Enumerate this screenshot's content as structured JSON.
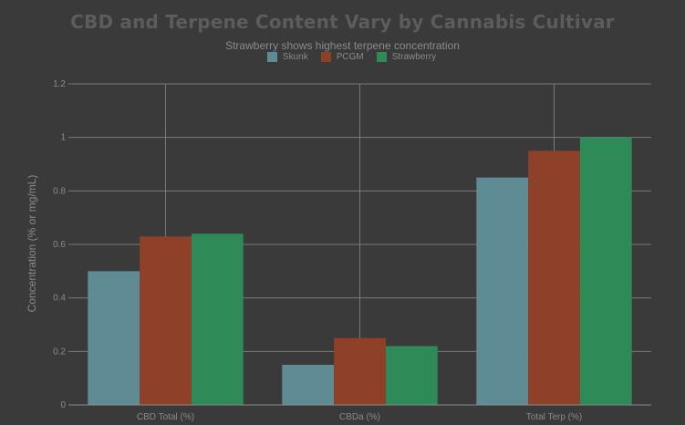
{
  "chart_data": {
    "type": "bar",
    "title": "CBD and Terpene Content Vary by Cannabis Cultivar",
    "subtitle": "Strawberry shows highest terpene concentration",
    "xlabel": "",
    "ylabel": "Concentration (% or mg/mL)",
    "categories": [
      "CBD Total (%)",
      "CBDa (%)",
      "Total Terp (%)"
    ],
    "series": [
      {
        "name": "Skunk",
        "color": "#5f8c94",
        "values": [
          0.5,
          0.15,
          0.85
        ]
      },
      {
        "name": "PCGM",
        "color": "#8e4128",
        "values": [
          0.63,
          0.25,
          0.95
        ]
      },
      {
        "name": "Strawberry",
        "color": "#2e8b57",
        "values": [
          0.64,
          0.22,
          1.0
        ]
      }
    ],
    "ylim": [
      0,
      1.2
    ],
    "yticks": [
      0,
      0.2,
      0.4,
      0.6,
      0.8,
      1,
      1.2
    ],
    "ytick_labels": [
      "0",
      "0.2",
      "0.4",
      "0.6",
      "0.8",
      "1",
      "1.2"
    ],
    "grid": true,
    "legend_position": "top-center"
  }
}
